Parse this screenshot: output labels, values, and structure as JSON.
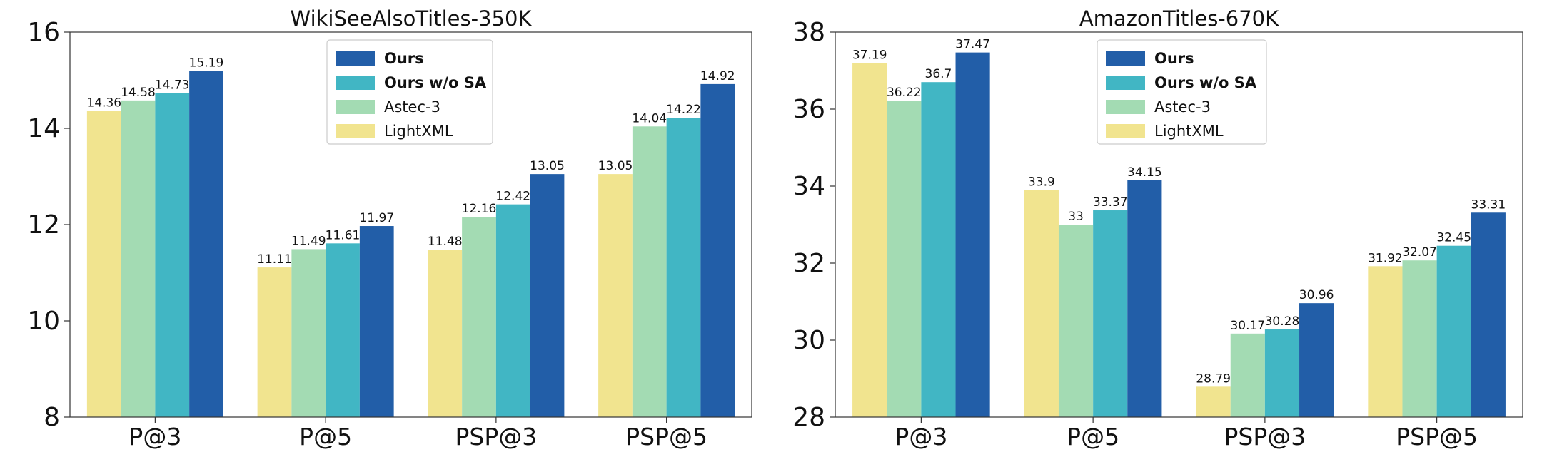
{
  "chart_data": [
    {
      "type": "bar",
      "title": "WikiSeeAlsoTitles-350K",
      "xlabel": "",
      "ylabel": "",
      "categories": [
        "P@3",
        "P@5",
        "PSP@3",
        "PSP@5"
      ],
      "ylim": [
        8,
        16
      ],
      "yticks": [
        "8",
        "10",
        "12",
        "14",
        "16"
      ],
      "legend_position": "upper center",
      "grid": false,
      "series": [
        {
          "name": "LightXML",
          "color": "#f1e48f",
          "values": [
            14.36,
            11.11,
            11.48,
            13.05
          ],
          "labels": [
            "14.36",
            "11.11",
            "11.48",
            "13.05"
          ]
        },
        {
          "name": "Astec-3",
          "color": "#a3dbb3",
          "values": [
            14.58,
            11.49,
            12.16,
            14.04
          ],
          "labels": [
            "14.58",
            "11.49",
            "12.16",
            "14.04"
          ]
        },
        {
          "name": "Ours w/o SA",
          "color": "#41b6c4",
          "values": [
            14.73,
            11.61,
            12.42,
            14.22
          ],
          "labels": [
            "14.73",
            "11.61",
            "12.42",
            "14.22"
          ]
        },
        {
          "name": "Ours",
          "color": "#225ea8",
          "values": [
            15.19,
            11.97,
            13.05,
            14.92
          ],
          "labels": [
            "15.19",
            "11.97",
            "13.05",
            "14.92"
          ]
        }
      ]
    },
    {
      "type": "bar",
      "title": "AmazonTitles-670K",
      "xlabel": "",
      "ylabel": "",
      "categories": [
        "P@3",
        "P@5",
        "PSP@3",
        "PSP@5"
      ],
      "ylim": [
        28,
        38
      ],
      "yticks": [
        "28",
        "30",
        "32",
        "34",
        "36",
        "38"
      ],
      "legend_position": "upper center",
      "grid": false,
      "series": [
        {
          "name": "LightXML",
          "color": "#f1e48f",
          "values": [
            37.19,
            33.9,
            28.79,
            31.92
          ],
          "labels": [
            "37.19",
            "33.9",
            "28.79",
            "31.92"
          ]
        },
        {
          "name": "Astec-3",
          "color": "#a3dbb3",
          "values": [
            36.22,
            33,
            30.17,
            32.07
          ],
          "labels": [
            "36.22",
            "33",
            "30.17",
            "32.07"
          ]
        },
        {
          "name": "Ours w/o SA",
          "color": "#41b6c4",
          "values": [
            36.7,
            33.37,
            30.28,
            32.45
          ],
          "labels": [
            "36.7",
            "33.37",
            "30.28",
            "32.45"
          ]
        },
        {
          "name": "Ours",
          "color": "#225ea8",
          "values": [
            37.47,
            34.15,
            30.96,
            33.31
          ],
          "labels": [
            "37.47",
            "34.15",
            "30.96",
            "33.31"
          ]
        }
      ]
    }
  ]
}
